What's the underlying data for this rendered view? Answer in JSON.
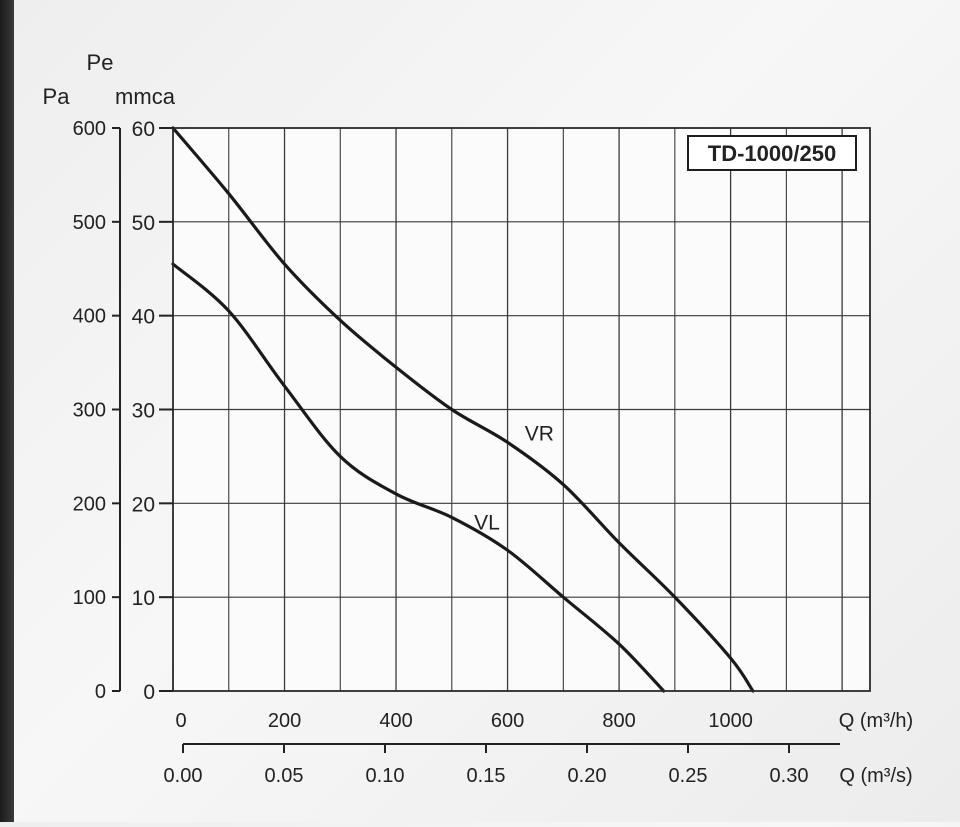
{
  "chart_data": {
    "type": "line",
    "title": "TD-1000/250",
    "xlabel": "Q (m³/h)",
    "x2label": "Q (m³/s)",
    "ylabel": "Pe",
    "y_unit_left": "Pa",
    "y_unit_right": "mmca",
    "xlim": [
      0,
      1200
    ],
    "x2lim": [
      0,
      0.35
    ],
    "ylim_pa": [
      0,
      600
    ],
    "ylim_mmca": [
      0,
      60
    ],
    "grid": true,
    "x_ticks": [
      0,
      200,
      400,
      600,
      800,
      1000
    ],
    "x_tick_labels": [
      "0",
      "200",
      "400",
      "600",
      "800",
      "1000"
    ],
    "x2_ticks": [
      0.0,
      0.05,
      0.1,
      0.15,
      0.2,
      0.25,
      0.3
    ],
    "x2_tick_labels": [
      "0.00",
      "0.05",
      "0.10",
      "0.15",
      "0.20",
      "0.25",
      "0.30"
    ],
    "y_ticks_pa": [
      0,
      100,
      200,
      300,
      400,
      500,
      600
    ],
    "y_tick_labels_pa": [
      "0",
      "100",
      "200",
      "300",
      "400",
      "500",
      "600"
    ],
    "y_ticks_mmca": [
      0,
      10,
      20,
      30,
      40,
      50,
      60
    ],
    "y_tick_labels_mmca": [
      "0",
      "10",
      "20",
      "30",
      "40",
      "50",
      "60"
    ],
    "series": [
      {
        "name": "VR",
        "x": [
          0,
          100,
          200,
          300,
          400,
          500,
          600,
          700,
          800,
          900,
          1000,
          1040
        ],
        "y": [
          600,
          530,
          455,
          395,
          345,
          300,
          265,
          220,
          158,
          100,
          35,
          0
        ]
      },
      {
        "name": "VL",
        "x": [
          0,
          100,
          200,
          300,
          400,
          500,
          600,
          700,
          800,
          880
        ],
        "y": [
          455,
          405,
          325,
          250,
          210,
          185,
          150,
          100,
          50,
          0
        ]
      }
    ]
  }
}
